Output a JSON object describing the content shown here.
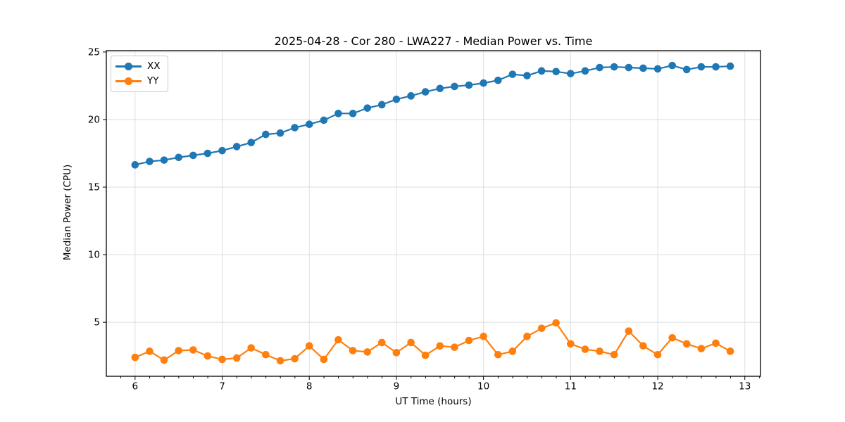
{
  "figure": {
    "background_color": "#ffffff",
    "axis_color": "#000000",
    "grid_color": "#dedede",
    "text_color": "#000000",
    "legend_border_color": "#cccccc"
  },
  "chart_data": {
    "type": "line",
    "title": "2025-04-28 - Cor 280 - LWA227 - Median Power vs. Time",
    "xlabel": "UT Time (hours)",
    "ylabel": "Median Power (CPU)",
    "xlim": [
      5.67,
      13.18
    ],
    "ylim": [
      1.0,
      25.1
    ],
    "x_major_ticks": [
      6,
      7,
      8,
      9,
      10,
      11,
      12,
      13
    ],
    "x_minor_tick_step": 0.1667,
    "y_major_ticks": [
      5,
      10,
      15,
      20,
      25
    ],
    "grid": true,
    "legend_position": "upper-left",
    "x": [
      6.0,
      6.167,
      6.333,
      6.5,
      6.667,
      6.833,
      7.0,
      7.167,
      7.333,
      7.5,
      7.667,
      7.833,
      8.0,
      8.167,
      8.333,
      8.5,
      8.667,
      8.833,
      9.0,
      9.167,
      9.333,
      9.5,
      9.667,
      9.833,
      10.0,
      10.167,
      10.333,
      10.5,
      10.667,
      10.833,
      11.0,
      11.167,
      11.333,
      11.5,
      11.667,
      11.833,
      12.0,
      12.167,
      12.333,
      12.5,
      12.667,
      12.833
    ],
    "series": [
      {
        "name": "XX",
        "color": "#1f77b4",
        "marker": "circle",
        "values": [
          16.65,
          16.9,
          17.0,
          17.2,
          17.35,
          17.5,
          17.7,
          18.0,
          18.3,
          18.9,
          19.0,
          19.4,
          19.65,
          19.95,
          20.45,
          20.45,
          20.85,
          21.1,
          21.5,
          21.75,
          22.05,
          22.3,
          22.45,
          22.55,
          22.7,
          22.9,
          23.35,
          23.25,
          23.6,
          23.55,
          23.4,
          23.6,
          23.85,
          23.9,
          23.85,
          23.8,
          23.75,
          24.0,
          23.7,
          23.9,
          23.9,
          23.95
        ]
      },
      {
        "name": "YY",
        "color": "#ff7f0e",
        "marker": "circle",
        "values": [
          2.4,
          2.85,
          2.2,
          2.9,
          2.95,
          2.5,
          2.25,
          2.35,
          3.1,
          2.6,
          2.15,
          2.3,
          3.25,
          2.25,
          3.7,
          2.9,
          2.8,
          3.5,
          2.75,
          3.5,
          2.55,
          3.25,
          3.15,
          3.65,
          3.95,
          2.6,
          2.85,
          3.95,
          4.55,
          4.95,
          3.4,
          3.0,
          2.85,
          2.6,
          4.35,
          3.25,
          2.6,
          3.85,
          3.4,
          3.05,
          3.45,
          2.85
        ]
      }
    ]
  }
}
